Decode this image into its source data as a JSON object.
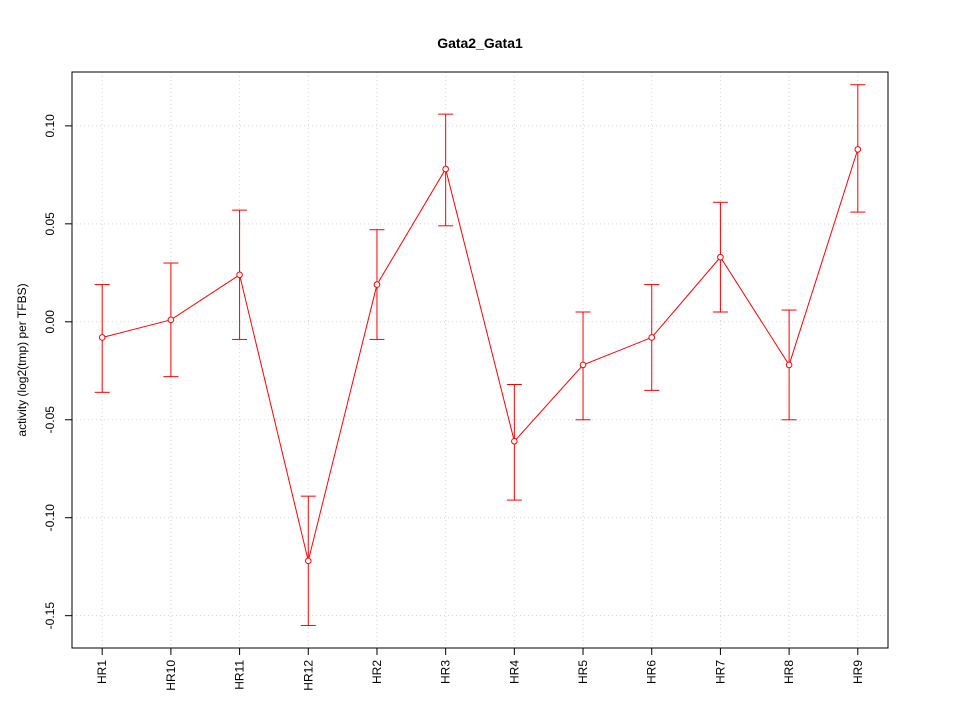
{
  "chart_data": {
    "type": "line",
    "title": "Gata2_Gata1",
    "xlabel": "",
    "ylabel": "activity (log2(tmp) per TFBS)",
    "categories": [
      "HR1",
      "HR10",
      "HR11",
      "HR12",
      "HR2",
      "HR3",
      "HR4",
      "HR5",
      "HR6",
      "HR7",
      "HR8",
      "HR9"
    ],
    "series": [
      {
        "values": [
          -0.008,
          0.001,
          0.024,
          -0.122,
          0.019,
          0.078,
          -0.061,
          -0.022,
          -0.008,
          0.033,
          -0.022,
          0.088
        ],
        "upper": [
          0.019,
          0.03,
          0.057,
          -0.089,
          0.047,
          0.106,
          -0.032,
          0.005,
          0.019,
          0.061,
          0.006,
          0.121
        ],
        "lower": [
          -0.036,
          -0.028,
          -0.009,
          -0.155,
          -0.009,
          0.049,
          -0.091,
          -0.05,
          -0.035,
          0.005,
          -0.05,
          0.056
        ],
        "color": "#ff0000"
      }
    ],
    "yticks": [
      -0.15,
      -0.1,
      -0.05,
      0.0,
      0.05,
      0.1
    ],
    "ytick_labels": [
      "-0.15",
      "-0.10",
      "-0.05",
      "0.00",
      "0.05",
      "0.10"
    ],
    "ylim": [
      -0.1665,
      0.1275
    ],
    "grid": true,
    "grid_color": "#d3d3d3",
    "error_bars": true
  }
}
